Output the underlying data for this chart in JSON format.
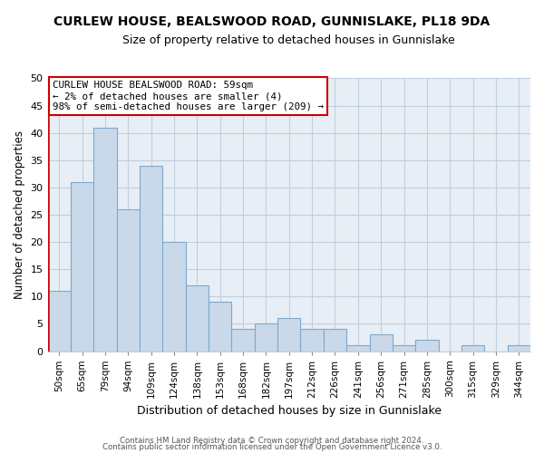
{
  "title": "CURLEW HOUSE, BEALSWOOD ROAD, GUNNISLAKE, PL18 9DA",
  "subtitle": "Size of property relative to detached houses in Gunnislake",
  "xlabel": "Distribution of detached houses by size in Gunnislake",
  "ylabel": "Number of detached properties",
  "bar_color": "#c9d9ea",
  "bar_edge_color": "#7fa8cc",
  "highlight_color": "#cc0000",
  "grid_color": "#c0cfe0",
  "bg_color": "#e8eef5",
  "categories": [
    "50sqm",
    "65sqm",
    "79sqm",
    "94sqm",
    "109sqm",
    "124sqm",
    "138sqm",
    "153sqm",
    "168sqm",
    "182sqm",
    "197sqm",
    "212sqm",
    "226sqm",
    "241sqm",
    "256sqm",
    "271sqm",
    "285sqm",
    "300sqm",
    "315sqm",
    "329sqm",
    "344sqm"
  ],
  "values": [
    11,
    31,
    41,
    26,
    34,
    20,
    12,
    9,
    4,
    5,
    6,
    4,
    4,
    1,
    3,
    1,
    2,
    0,
    1,
    0,
    1
  ],
  "ylim": [
    0,
    50
  ],
  "yticks": [
    0,
    5,
    10,
    15,
    20,
    25,
    30,
    35,
    40,
    45,
    50
  ],
  "annotation_title": "CURLEW HOUSE BEALSWOOD ROAD: 59sqm",
  "annotation_line1": "← 2% of detached houses are smaller (4)",
  "annotation_line2": "98% of semi-detached houses are larger (209) →",
  "footnote1": "Contains HM Land Registry data © Crown copyright and database right 2024.",
  "footnote2": "Contains public sector information licensed under the Open Government Licence v3.0."
}
